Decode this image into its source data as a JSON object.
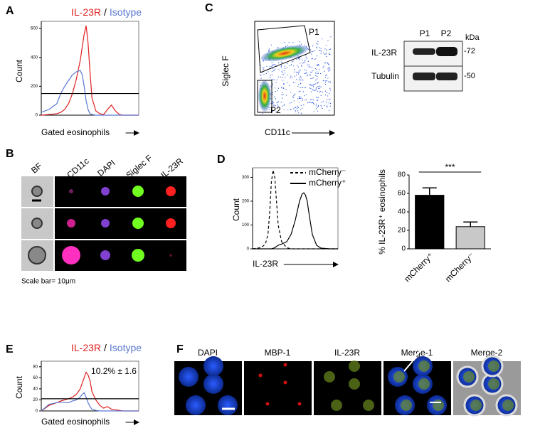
{
  "panel_letters": [
    "A",
    "B",
    "C",
    "D",
    "E",
    "F"
  ],
  "B": {
    "headers": [
      "BF",
      "CD11c",
      "DAPI",
      "Siglec F",
      "IL-23R"
    ],
    "scale_note": "Scale bar= 10μm"
  },
  "C": {
    "y_label": "Siglec F",
    "x_label": "CD11c",
    "gates": [
      "P1",
      "P2"
    ],
    "blot": {
      "lanes": [
        "P1",
        "P2"
      ],
      "unit": "kDa",
      "rows": [
        "IL-23R",
        "Tubulin"
      ],
      "markers": [
        "-72",
        "-50"
      ]
    }
  },
  "F": {
    "headers": [
      "DAPI",
      "MBP-1",
      "IL-23R",
      "Merge-1",
      "Merge-2"
    ]
  },
  "chart_data": [
    {
      "type": "line",
      "panel": "A",
      "separator": "/",
      "x_label": "Gated eosinophils",
      "y_label": "Count",
      "x": [
        0,
        8,
        16,
        20,
        24,
        28,
        32,
        36,
        40,
        42,
        44,
        46,
        48,
        50,
        52,
        56,
        60,
        64,
        68,
        72,
        76,
        80,
        84,
        88,
        92,
        100
      ],
      "series": [
        {
          "name": "IL-23R",
          "color": "#e02020",
          "values": [
            0,
            5,
            10,
            20,
            40,
            80,
            150,
            250,
            380,
            470,
            560,
            620,
            500,
            300,
            120,
            30,
            10,
            5,
            40,
            70,
            30,
            5,
            0,
            0,
            0,
            0
          ]
        },
        {
          "name": "Isotype",
          "color": "#5a78d0",
          "values": [
            20,
            40,
            80,
            150,
            200,
            240,
            280,
            300,
            310,
            280,
            200,
            100,
            40,
            10,
            5,
            0,
            0,
            0,
            0,
            0,
            0,
            0,
            0,
            0,
            0,
            0
          ]
        }
      ],
      "xlim": [
        0,
        100
      ],
      "ylim": [
        0,
        650
      ],
      "yticks": [
        0,
        200,
        400,
        600
      ],
      "gate": {
        "y": 150,
        "x": [
          0,
          100
        ]
      }
    },
    {
      "type": "line",
      "panel": "D",
      "x_label": "IL-23R",
      "y_label": "Count",
      "x": [
        0,
        10,
        15,
        18,
        20,
        22,
        24,
        26,
        28,
        30,
        34,
        40,
        45,
        50,
        55,
        58,
        60,
        62,
        64,
        66,
        70,
        75,
        80,
        90,
        100
      ],
      "series": [
        {
          "name": "mCherry⁻",
          "color": "#000000",
          "dash": true,
          "values": [
            0,
            5,
            20,
            60,
            150,
            280,
            330,
            300,
            200,
            100,
            30,
            5,
            0,
            0,
            0,
            0,
            0,
            0,
            0,
            0,
            0,
            0,
            0,
            0,
            0
          ]
        },
        {
          "name": "mCherry⁺",
          "color": "#000000",
          "dash": false,
          "values": [
            0,
            0,
            0,
            0,
            0,
            0,
            2,
            5,
            10,
            15,
            20,
            30,
            60,
            120,
            200,
            230,
            235,
            225,
            200,
            150,
            60,
            15,
            3,
            0,
            0
          ]
        }
      ],
      "xlim": [
        0,
        100
      ],
      "ylim": [
        0,
        340
      ],
      "yticks": [
        0,
        100,
        200,
        300
      ]
    },
    {
      "type": "bar",
      "y_label": "% IL-23R⁺ eosinophils",
      "categories": [
        "mCherry⁺",
        "mCherry⁻"
      ],
      "values": [
        58,
        24
      ],
      "errors": [
        8,
        5
      ],
      "colors": [
        "#000000",
        "#c8c8c8"
      ],
      "ylim": [
        0,
        80
      ],
      "yticks": [
        0,
        20,
        40,
        60,
        80
      ],
      "significance": "***"
    },
    {
      "type": "line",
      "panel": "E",
      "separator": "/",
      "x_label": "Gated eosinophils",
      "y_label": "Count",
      "annotation": "10.2% ± 1.6",
      "x": [
        0,
        8,
        16,
        20,
        24,
        28,
        32,
        36,
        40,
        42,
        44,
        46,
        48,
        50,
        52,
        56,
        60,
        64,
        68,
        72,
        76,
        80,
        84,
        88,
        92,
        100
      ],
      "series": [
        {
          "name": "IL-23R",
          "color": "#e02020",
          "values": [
            0,
            10,
            15,
            18,
            20,
            22,
            25,
            30,
            40,
            50,
            60,
            70,
            65,
            55,
            35,
            20,
            10,
            5,
            8,
            3,
            2,
            1,
            0,
            0,
            0,
            0
          ]
        },
        {
          "name": "Isotype",
          "color": "#5a78d0",
          "values": [
            0,
            12,
            15,
            16,
            15,
            15,
            18,
            20,
            25,
            30,
            33,
            25,
            15,
            8,
            3,
            1,
            0,
            0,
            0,
            0,
            0,
            0,
            0,
            0,
            0,
            0
          ]
        }
      ],
      "xlim": [
        0,
        100
      ],
      "ylim": [
        0,
        90
      ],
      "yticks": [
        0,
        20,
        40,
        60,
        80
      ],
      "gate": {
        "y": 22,
        "x": [
          0,
          100
        ]
      }
    }
  ]
}
